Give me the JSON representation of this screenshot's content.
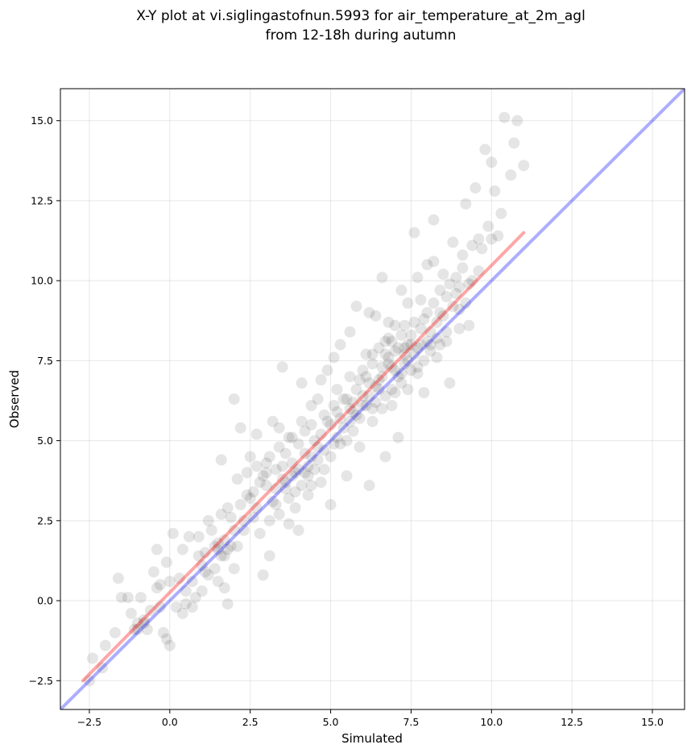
{
  "chart_data": {
    "type": "scatter",
    "title": "X-Y plot at vi.siglingastofnun.5993 for air_temperature_at_2m_agl",
    "subtitle": "from 12-18h during autumn",
    "xlabel": "Simulated",
    "ylabel": "Observed",
    "xlim": [
      -3.4,
      16.0
    ],
    "ylim": [
      -3.4,
      16.0
    ],
    "x_ticks": [
      -2.5,
      0.0,
      2.5,
      5.0,
      7.5,
      10.0,
      12.5,
      15.0
    ],
    "x_tick_labels": [
      "−2.5",
      "0.0",
      "2.5",
      "5.0",
      "7.5",
      "10.0",
      "12.5",
      "15.0"
    ],
    "y_ticks": [
      -2.5,
      0.0,
      2.5,
      5.0,
      7.5,
      10.0,
      12.5,
      15.0
    ],
    "y_tick_labels": [
      "−2.5",
      "0.0",
      "2.5",
      "5.0",
      "7.5",
      "10.0",
      "12.5",
      "15.0"
    ],
    "grid": true,
    "legend": "none",
    "point_color": "#000000",
    "point_opacity": 0.1,
    "points": [
      [
        -2.5,
        -2.5
      ],
      [
        -2.4,
        -1.8
      ],
      [
        -2.1,
        -2.1
      ],
      [
        -2.0,
        -1.4
      ],
      [
        -1.7,
        -1.0
      ],
      [
        -1.6,
        0.7
      ],
      [
        -1.5,
        0.1
      ],
      [
        -1.3,
        0.1
      ],
      [
        -1.2,
        -0.4
      ],
      [
        -1.1,
        -0.9
      ],
      [
        -1.0,
        -0.7
      ],
      [
        -0.9,
        0.1
      ],
      [
        -0.8,
        -0.6
      ],
      [
        -0.7,
        -0.9
      ],
      [
        -0.6,
        -0.3
      ],
      [
        -0.5,
        0.9
      ],
      [
        -0.4,
        1.6
      ],
      [
        -0.4,
        0.4
      ],
      [
        -0.3,
        -0.2
      ],
      [
        -0.2,
        -1.0
      ],
      [
        -0.1,
        1.2
      ],
      [
        -0.1,
        -1.2
      ],
      [
        0.0,
        0.6
      ],
      [
        0.0,
        -1.4
      ],
      [
        0.1,
        2.1
      ],
      [
        0.2,
        -0.2
      ],
      [
        0.3,
        0.7
      ],
      [
        0.4,
        -0.4
      ],
      [
        0.4,
        1.6
      ],
      [
        0.5,
        0.3
      ],
      [
        0.6,
        2.0
      ],
      [
        0.7,
        0.6
      ],
      [
        0.8,
        0.1
      ],
      [
        0.9,
        2.0
      ],
      [
        1.0,
        1.1
      ],
      [
        1.0,
        0.3
      ],
      [
        1.1,
        1.5
      ],
      [
        1.2,
        0.8
      ],
      [
        1.3,
        2.2
      ],
      [
        1.4,
        1.0
      ],
      [
        1.5,
        1.8
      ],
      [
        1.5,
        0.6
      ],
      [
        1.6,
        2.7
      ],
      [
        1.6,
        4.4
      ],
      [
        1.7,
        1.4
      ],
      [
        1.7,
        0.4
      ],
      [
        1.8,
        -0.1
      ],
      [
        1.8,
        2.9
      ],
      [
        1.9,
        1.7
      ],
      [
        2.0,
        6.3
      ],
      [
        2.0,
        1.0
      ],
      [
        2.1,
        3.8
      ],
      [
        2.2,
        5.4
      ],
      [
        2.3,
        2.2
      ],
      [
        2.4,
        3.3
      ],
      [
        2.5,
        4.5
      ],
      [
        2.6,
        2.6
      ],
      [
        2.7,
        5.2
      ],
      [
        2.8,
        3.7
      ],
      [
        2.9,
        0.8
      ],
      [
        3.0,
        4.3
      ],
      [
        3.1,
        1.4
      ],
      [
        3.2,
        5.6
      ],
      [
        3.3,
        3.0
      ],
      [
        3.4,
        4.8
      ],
      [
        3.5,
        7.3
      ],
      [
        3.6,
        3.5
      ],
      [
        3.7,
        2.4
      ],
      [
        3.8,
        5.1
      ],
      [
        3.9,
        4.0
      ],
      [
        4.0,
        2.2
      ],
      [
        4.1,
        6.8
      ],
      [
        4.2,
        4.6
      ],
      [
        4.3,
        3.3
      ],
      [
        4.4,
        5.5
      ],
      [
        4.5,
        4.1
      ],
      [
        4.6,
        6.3
      ],
      [
        4.7,
        3.7
      ],
      [
        4.8,
        5.8
      ],
      [
        4.9,
        7.2
      ],
      [
        5.0,
        3.0
      ],
      [
        5.1,
        4.9
      ],
      [
        5.2,
        6.6
      ],
      [
        5.3,
        8.0
      ],
      [
        5.4,
        5.4
      ],
      [
        5.5,
        3.9
      ],
      [
        5.6,
        7.0
      ],
      [
        5.7,
        5.9
      ],
      [
        5.8,
        9.2
      ],
      [
        5.9,
        4.8
      ],
      [
        6.0,
        6.4
      ],
      [
        6.1,
        7.7
      ],
      [
        6.2,
        3.6
      ],
      [
        6.3,
        5.6
      ],
      [
        6.4,
        8.9
      ],
      [
        6.5,
        6.9
      ],
      [
        6.6,
        10.1
      ],
      [
        6.7,
        4.5
      ],
      [
        6.8,
        7.4
      ],
      [
        6.9,
        6.1
      ],
      [
        7.0,
        8.6
      ],
      [
        7.1,
        5.1
      ],
      [
        7.2,
        9.7
      ],
      [
        7.3,
        7.9
      ],
      [
        7.4,
        6.6
      ],
      [
        7.5,
        8.3
      ],
      [
        7.6,
        11.5
      ],
      [
        7.7,
        7.1
      ],
      [
        7.8,
        9.4
      ],
      [
        7.9,
        6.5
      ],
      [
        8.0,
        10.5
      ],
      [
        8.1,
        8.0
      ],
      [
        8.2,
        11.9
      ],
      [
        8.3,
        7.6
      ],
      [
        8.4,
        9.0
      ],
      [
        8.5,
        10.2
      ],
      [
        8.6,
        8.4
      ],
      [
        8.7,
        6.8
      ],
      [
        8.8,
        11.2
      ],
      [
        8.9,
        9.6
      ],
      [
        9.0,
        8.5
      ],
      [
        9.1,
        10.8
      ],
      [
        9.2,
        12.4
      ],
      [
        9.3,
        9.9
      ],
      [
        9.4,
        11.1
      ],
      [
        9.5,
        12.9
      ],
      [
        9.6,
        10.3
      ],
      [
        9.8,
        14.1
      ],
      [
        9.9,
        11.7
      ],
      [
        10.0,
        13.7
      ],
      [
        10.1,
        12.8
      ],
      [
        10.2,
        11.4
      ],
      [
        10.4,
        15.1
      ],
      [
        10.6,
        13.3
      ],
      [
        10.7,
        14.3
      ],
      [
        10.8,
        15.0
      ],
      [
        11.0,
        13.6
      ],
      [
        0.5,
        -0.1
      ],
      [
        0.7,
        -0.2
      ],
      [
        -0.3,
        0.5
      ],
      [
        1.2,
        2.5
      ],
      [
        1.4,
        1.7
      ],
      [
        1.9,
        2.6
      ],
      [
        2.1,
        1.7
      ],
      [
        2.2,
        3.0
      ],
      [
        2.4,
        4.0
      ],
      [
        2.6,
        3.4
      ],
      [
        2.7,
        4.2
      ],
      [
        2.8,
        2.1
      ],
      [
        2.9,
        3.9
      ],
      [
        3.0,
        3.6
      ],
      [
        3.1,
        4.5
      ],
      [
        3.2,
        3.1
      ],
      [
        3.3,
        4.1
      ],
      [
        3.4,
        2.7
      ],
      [
        3.5,
        3.8
      ],
      [
        3.6,
        4.6
      ],
      [
        3.7,
        3.2
      ],
      [
        3.8,
        4.3
      ],
      [
        3.9,
        2.9
      ],
      [
        4.0,
        4.9
      ],
      [
        4.1,
        3.6
      ],
      [
        4.2,
        5.3
      ],
      [
        4.3,
        4.2
      ],
      [
        4.4,
        3.6
      ],
      [
        4.5,
        5.0
      ],
      [
        4.6,
        4.4
      ],
      [
        4.7,
        5.2
      ],
      [
        4.8,
        4.1
      ],
      [
        4.9,
        5.6
      ],
      [
        5.0,
        4.5
      ],
      [
        5.1,
        6.1
      ],
      [
        5.2,
        5.1
      ],
      [
        5.3,
        5.7
      ],
      [
        5.4,
        6.3
      ],
      [
        5.5,
        5.0
      ],
      [
        5.6,
        6.0
      ],
      [
        5.7,
        5.3
      ],
      [
        5.8,
        6.6
      ],
      [
        5.9,
        5.7
      ],
      [
        6.0,
        7.2
      ],
      [
        6.1,
        6.1
      ],
      [
        6.2,
        6.8
      ],
      [
        6.3,
        7.4
      ],
      [
        6.4,
        6.2
      ],
      [
        6.5,
        7.9
      ],
      [
        6.6,
        7.0
      ],
      [
        6.7,
        6.4
      ],
      [
        6.8,
        8.2
      ],
      [
        6.9,
        7.3
      ],
      [
        7.0,
        7.8
      ],
      [
        7.1,
        7.0
      ],
      [
        7.2,
        8.3
      ],
      [
        7.3,
        7.4
      ],
      [
        7.4,
        8.0
      ],
      [
        7.5,
        7.2
      ],
      [
        7.6,
        8.7
      ],
      [
        7.7,
        7.9
      ],
      [
        7.8,
        8.5
      ],
      [
        7.9,
        7.5
      ],
      [
        8.0,
        9.0
      ],
      [
        8.1,
        8.4
      ],
      [
        8.2,
        9.3
      ],
      [
        8.3,
        8.7
      ],
      [
        8.4,
        9.7
      ],
      [
        8.5,
        8.9
      ],
      [
        8.6,
        9.5
      ],
      [
        8.8,
        9.2
      ],
      [
        9.0,
        9.8
      ],
      [
        9.2,
        9.3
      ],
      [
        9.4,
        10.0
      ],
      [
        6.8,
        7.6
      ],
      [
        7.0,
        7.2
      ],
      [
        7.3,
        7.7
      ],
      [
        7.1,
        7.9
      ],
      [
        6.9,
        8.1
      ],
      [
        7.4,
        7.5
      ],
      [
        6.6,
        7.3
      ],
      [
        7.2,
        7.1
      ],
      [
        6.5,
        6.6
      ],
      [
        6.3,
        6.0
      ],
      [
        6.0,
        6.1
      ],
      [
        5.8,
        5.8
      ],
      [
        6.2,
        6.4
      ],
      [
        5.6,
        5.6
      ],
      [
        6.4,
        6.7
      ],
      [
        7.6,
        7.7
      ],
      [
        7.8,
        8.0
      ],
      [
        8.0,
        8.1
      ],
      [
        4.0,
        4.1
      ],
      [
        3.8,
        3.9
      ],
      [
        4.2,
        4.0
      ],
      [
        3.5,
        4.2
      ],
      [
        3.0,
        4.0
      ],
      [
        2.5,
        3.2
      ],
      [
        1.6,
        1.4
      ],
      [
        1.8,
        1.6
      ],
      [
        1.7,
        1.9
      ],
      [
        1.5,
        1.6
      ],
      [
        -1.0,
        -0.9
      ],
      [
        -0.8,
        -0.7
      ],
      [
        5.5,
        6.3
      ],
      [
        5.7,
        6.2
      ],
      [
        6.1,
        7.0
      ],
      [
        6.7,
        7.7
      ],
      [
        7.5,
        8.0
      ],
      [
        7.7,
        7.3
      ],
      [
        8.3,
        8.2
      ],
      [
        8.6,
        8.1
      ],
      [
        3.3,
        3.5
      ],
      [
        3.6,
        3.7
      ],
      [
        4.4,
        4.5
      ],
      [
        4.6,
        4.8
      ],
      [
        5.0,
        5.5
      ],
      [
        5.2,
        5.9
      ],
      [
        4.8,
        4.7
      ],
      [
        6.6,
        6.0
      ],
      [
        6.9,
        6.6
      ],
      [
        7.2,
        6.8
      ],
      [
        7.0,
        6.5
      ],
      [
        8.1,
        7.8
      ],
      [
        8.4,
        8.0
      ],
      [
        9.0,
        9.1
      ],
      [
        9.3,
        8.6
      ],
      [
        2.0,
        2.2
      ],
      [
        2.3,
        2.5
      ],
      [
        2.7,
        2.9
      ],
      [
        0.9,
        1.4
      ],
      [
        1.1,
        0.9
      ],
      [
        3.1,
        2.5
      ],
      [
        3.9,
        3.4
      ],
      [
        4.3,
        3.9
      ],
      [
        5.3,
        4.9
      ],
      [
        5.9,
        6.9
      ],
      [
        6.3,
        7.7
      ],
      [
        6.8,
        8.7
      ],
      [
        7.3,
        8.6
      ],
      [
        7.9,
        8.8
      ],
      [
        8.7,
        9.9
      ],
      [
        9.1,
        10.4
      ],
      [
        9.6,
        11.3
      ],
      [
        10.0,
        11.3
      ],
      [
        10.3,
        12.1
      ],
      [
        9.7,
        11.0
      ],
      [
        8.9,
        10.1
      ],
      [
        8.2,
        10.6
      ],
      [
        7.7,
        10.1
      ],
      [
        7.4,
        9.3
      ],
      [
        6.7,
        8.1
      ],
      [
        6.2,
        9.0
      ],
      [
        5.6,
        8.4
      ],
      [
        5.1,
        7.6
      ],
      [
        4.7,
        6.9
      ],
      [
        4.4,
        6.1
      ],
      [
        4.1,
        5.6
      ],
      [
        3.7,
        5.1
      ],
      [
        3.4,
        5.4
      ]
    ],
    "fit_line": {
      "color": "#ff0000",
      "opacity": 0.35,
      "x": [
        -2.7,
        11.0
      ],
      "y": [
        -2.5,
        11.5
      ]
    },
    "identity_line": {
      "color": "#0000ff",
      "opacity": 0.32,
      "x": [
        -3.4,
        16.0
      ],
      "y": [
        -3.4,
        16.0
      ]
    }
  }
}
